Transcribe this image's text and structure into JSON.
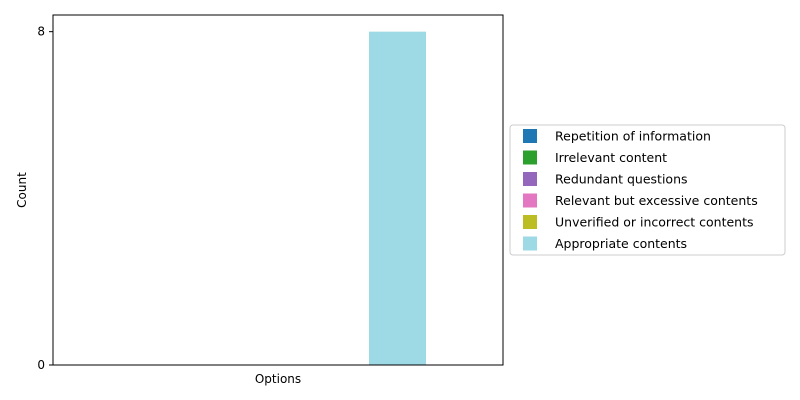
{
  "chart_data": {
    "type": "bar",
    "title": "",
    "xlabel": "Options",
    "ylabel": "Count",
    "ylim": [
      0,
      8.4
    ],
    "y_ticks": [
      0,
      8
    ],
    "y_tick_labels": [
      "0",
      "8"
    ],
    "x_ticks": [],
    "legend_placement": "center-right-outside",
    "grid": false,
    "series": [
      {
        "name": "Repetition of information",
        "value": 0,
        "color": "#1f77b4"
      },
      {
        "name": "Irrelevant content",
        "value": 0,
        "color": "#2ca02c"
      },
      {
        "name": "Redundant questions",
        "value": 0,
        "color": "#9467bd"
      },
      {
        "name": "Relevant but excessive contents",
        "value": 0,
        "color": "#e377c2"
      },
      {
        "name": "Unverified or incorrect contents",
        "value": 0,
        "color": "#bcbd22"
      },
      {
        "name": "Appropriate contents",
        "value": 8,
        "color": "#9edae5"
      }
    ]
  }
}
